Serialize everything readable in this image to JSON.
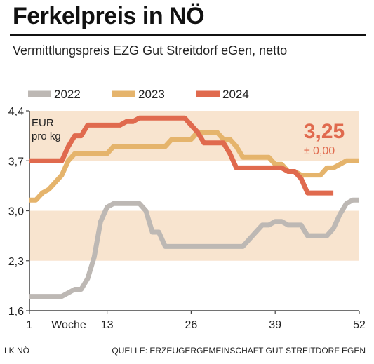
{
  "header": {
    "title": "Ferkelpreis in NÖ",
    "subtitle": "Vermittlungspreis EZG Gut Streitdorf eGen, netto"
  },
  "footer": {
    "left": "LK NÖ",
    "right": "QUELLE: ERZEUGERGEMEINSCHAFT GUT STREITDORF EGEN"
  },
  "colors": {
    "band": "#f8e4cf",
    "axis": "#444444"
  },
  "chart_data": {
    "type": "line",
    "title": "Ferkelpreis in NÖ",
    "subtitle": "Vermittlungspreis EZG Gut Streitdorf eGen, netto",
    "xlabel": "Woche",
    "ylabel": "EUR pro kg",
    "ylabel_lines": [
      "EUR",
      "pro kg"
    ],
    "xlim": [
      1,
      52
    ],
    "ylim": [
      1.6,
      4.4
    ],
    "x_ticks": [
      1,
      13,
      26,
      39,
      52
    ],
    "y_ticks": [
      1.6,
      2.3,
      3.0,
      3.7,
      4.4
    ],
    "y_tick_labels": [
      "1,6",
      "2,3",
      "3,0",
      "3,7",
      "4,4"
    ],
    "bands": [
      [
        3.7,
        4.4
      ],
      [
        2.3,
        3.0
      ]
    ],
    "legend_position": "top",
    "grid": false,
    "series": [
      {
        "name": "2022",
        "color": "#bdb8b4",
        "points": [
          [
            1,
            1.8
          ],
          [
            2,
            1.8
          ],
          [
            3,
            1.8
          ],
          [
            4,
            1.8
          ],
          [
            5,
            1.8
          ],
          [
            6,
            1.8
          ],
          [
            7,
            1.85
          ],
          [
            8,
            1.9
          ],
          [
            9,
            1.9
          ],
          [
            10,
            2.05
          ],
          [
            11,
            2.35
          ],
          [
            12,
            2.85
          ],
          [
            13,
            3.05
          ],
          [
            14,
            3.1
          ],
          [
            15,
            3.1
          ],
          [
            16,
            3.1
          ],
          [
            17,
            3.1
          ],
          [
            18,
            3.1
          ],
          [
            19,
            3.0
          ],
          [
            20,
            2.7
          ],
          [
            21,
            2.7
          ],
          [
            22,
            2.5
          ],
          [
            23,
            2.5
          ],
          [
            24,
            2.5
          ],
          [
            25,
            2.5
          ],
          [
            26,
            2.5
          ],
          [
            27,
            2.5
          ],
          [
            28,
            2.5
          ],
          [
            29,
            2.5
          ],
          [
            30,
            2.5
          ],
          [
            31,
            2.5
          ],
          [
            32,
            2.5
          ],
          [
            33,
            2.5
          ],
          [
            34,
            2.5
          ],
          [
            35,
            2.6
          ],
          [
            36,
            2.7
          ],
          [
            37,
            2.8
          ],
          [
            38,
            2.8
          ],
          [
            39,
            2.85
          ],
          [
            40,
            2.85
          ],
          [
            41,
            2.8
          ],
          [
            42,
            2.8
          ],
          [
            43,
            2.8
          ],
          [
            44,
            2.65
          ],
          [
            45,
            2.65
          ],
          [
            46,
            2.65
          ],
          [
            47,
            2.65
          ],
          [
            48,
            2.75
          ],
          [
            49,
            2.95
          ],
          [
            50,
            3.1
          ],
          [
            51,
            3.15
          ],
          [
            52,
            3.15
          ]
        ]
      },
      {
        "name": "2023",
        "color": "#e5b46c",
        "points": [
          [
            1,
            3.15
          ],
          [
            2,
            3.15
          ],
          [
            3,
            3.25
          ],
          [
            4,
            3.3
          ],
          [
            5,
            3.4
          ],
          [
            6,
            3.5
          ],
          [
            7,
            3.7
          ],
          [
            8,
            3.8
          ],
          [
            9,
            3.8
          ],
          [
            10,
            3.8
          ],
          [
            11,
            3.8
          ],
          [
            12,
            3.8
          ],
          [
            13,
            3.8
          ],
          [
            14,
            3.9
          ],
          [
            15,
            3.9
          ],
          [
            16,
            3.9
          ],
          [
            17,
            3.9
          ],
          [
            18,
            3.9
          ],
          [
            19,
            3.9
          ],
          [
            20,
            3.9
          ],
          [
            21,
            3.9
          ],
          [
            22,
            3.9
          ],
          [
            23,
            4.0
          ],
          [
            24,
            4.0
          ],
          [
            25,
            4.0
          ],
          [
            26,
            4.0
          ],
          [
            27,
            4.1
          ],
          [
            28,
            4.1
          ],
          [
            29,
            4.1
          ],
          [
            30,
            4.1
          ],
          [
            31,
            4.0
          ],
          [
            32,
            4.0
          ],
          [
            33,
            3.9
          ],
          [
            34,
            3.75
          ],
          [
            35,
            3.75
          ],
          [
            36,
            3.75
          ],
          [
            37,
            3.75
          ],
          [
            38,
            3.75
          ],
          [
            39,
            3.65
          ],
          [
            40,
            3.65
          ],
          [
            41,
            3.55
          ],
          [
            42,
            3.55
          ],
          [
            43,
            3.5
          ],
          [
            44,
            3.5
          ],
          [
            45,
            3.5
          ],
          [
            46,
            3.5
          ],
          [
            47,
            3.6
          ],
          [
            48,
            3.6
          ],
          [
            49,
            3.65
          ],
          [
            50,
            3.7
          ],
          [
            51,
            3.7
          ],
          [
            52,
            3.7
          ]
        ]
      },
      {
        "name": "2024",
        "color": "#e06a4e",
        "points": [
          [
            1,
            3.7
          ],
          [
            2,
            3.7
          ],
          [
            3,
            3.7
          ],
          [
            4,
            3.7
          ],
          [
            5,
            3.7
          ],
          [
            6,
            3.7
          ],
          [
            7,
            3.9
          ],
          [
            8,
            4.05
          ],
          [
            9,
            4.05
          ],
          [
            10,
            4.2
          ],
          [
            11,
            4.2
          ],
          [
            12,
            4.2
          ],
          [
            13,
            4.2
          ],
          [
            14,
            4.2
          ],
          [
            15,
            4.2
          ],
          [
            16,
            4.25
          ],
          [
            17,
            4.25
          ],
          [
            18,
            4.3
          ],
          [
            19,
            4.3
          ],
          [
            20,
            4.3
          ],
          [
            21,
            4.3
          ],
          [
            22,
            4.3
          ],
          [
            23,
            4.3
          ],
          [
            24,
            4.3
          ],
          [
            25,
            4.3
          ],
          [
            26,
            4.2
          ],
          [
            27,
            4.1
          ],
          [
            28,
            3.95
          ],
          [
            29,
            3.95
          ],
          [
            30,
            3.95
          ],
          [
            31,
            3.95
          ],
          [
            32,
            3.8
          ],
          [
            33,
            3.6
          ],
          [
            34,
            3.6
          ],
          [
            35,
            3.6
          ],
          [
            36,
            3.6
          ],
          [
            37,
            3.6
          ],
          [
            38,
            3.6
          ],
          [
            39,
            3.6
          ],
          [
            40,
            3.6
          ],
          [
            41,
            3.55
          ],
          [
            42,
            3.55
          ],
          [
            43,
            3.45
          ],
          [
            44,
            3.25
          ],
          [
            45,
            3.25
          ],
          [
            46,
            3.25
          ],
          [
            47,
            3.25
          ],
          [
            48,
            3.25
          ]
        ]
      }
    ],
    "annotation": {
      "value": "3,25",
      "change": "± 0,00",
      "color": "#e06a4e"
    }
  }
}
